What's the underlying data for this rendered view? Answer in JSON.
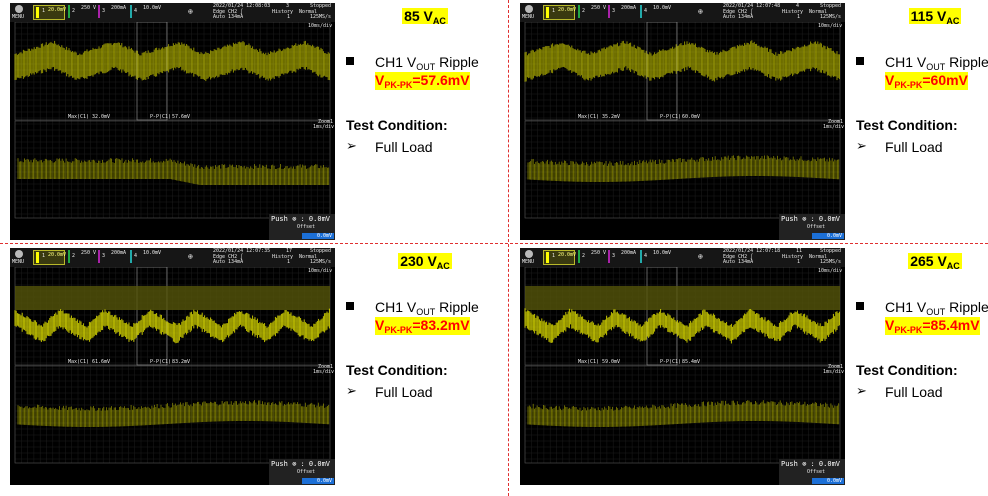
{
  "colors": {
    "trace": "#ffff00",
    "highlight": "#ffff00",
    "ripple_text": "#ff0000",
    "divider": "#e03030"
  },
  "common": {
    "ripple_label_pre": "CH1 V",
    "ripple_label_sub": "OUT",
    "ripple_label_post": " Ripple",
    "vpk_pre": "V",
    "vpk_sub": "PK-PK",
    "test_condition": "Test Condition:",
    "arrow": "➢",
    "load": "Full Load",
    "scope": {
      "menu": "MENU",
      "ch1_scale": "20.0mV",
      "ch2_scale": "250 V",
      "ch3_scale": "200mA",
      "ch4_scale": "10.0mV",
      "trigger": "Edge CH2 ∫",
      "trigger_level": "Auto 134mA",
      "history": "History",
      "history_val": "1",
      "mode": "Normal",
      "status": "Stopped",
      "rate": "125MS/s",
      "timebase": "10ms/div",
      "zoom": "Zoom1",
      "zoom_tb": "1ms/div",
      "push": "Push ⊗ : 0.0mV",
      "offset": "Offset",
      "offset_val": "0.0mV",
      "max_label": "Max(C1)",
      "pp_label": "P-P(C1)"
    }
  },
  "panels": [
    {
      "vac": "85",
      "vac_sub": "AC",
      "ripple": "=57.6mV",
      "scope": {
        "datetime": "2022/01/24 12:08:03",
        "count": "3",
        "max": "32.0mV",
        "pp": "57.6mV"
      }
    },
    {
      "vac": "115",
      "vac_sub": "AC",
      "ripple": "=60mV",
      "scope": {
        "datetime": "2022/01/24 12:07:48",
        "count": "4",
        "max": "35.2mV",
        "pp": "60.0mV"
      }
    },
    {
      "vac": "230",
      "vac_sub": "AC",
      "ripple": "=83.2mV",
      "scope": {
        "datetime": "2022/01/24 12:07:35",
        "count": "17",
        "max": "61.6mV",
        "pp": "83.2mV"
      }
    },
    {
      "vac": "265",
      "vac_sub": "AC",
      "ripple": "=85.4mV",
      "scope": {
        "datetime": "2022/01/24 12:07:18",
        "count": "11",
        "max": "59.0mV",
        "pp": "85.4mV"
      }
    }
  ]
}
